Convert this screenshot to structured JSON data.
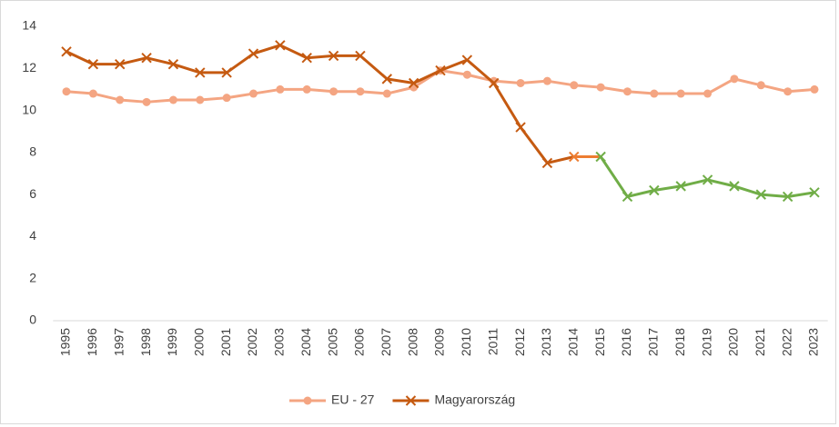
{
  "chart_data": {
    "type": "line",
    "categories": [
      "1995",
      "1996",
      "1997",
      "1998",
      "1999",
      "2000",
      "2001",
      "2002",
      "2003",
      "2004",
      "2005",
      "2006",
      "2007",
      "2008",
      "2009",
      "2010",
      "2011",
      "2012",
      "2013",
      "2014",
      "2015",
      "2016",
      "2017",
      "2018",
      "2019",
      "2020",
      "2021",
      "2022",
      "2023"
    ],
    "series": [
      {
        "name": "EU - 27",
        "color": "#f4a582",
        "marker": "circle",
        "values": [
          10.9,
          10.8,
          10.5,
          10.4,
          10.5,
          10.5,
          10.6,
          10.8,
          11.0,
          11.0,
          10.9,
          10.9,
          10.8,
          11.1,
          11.9,
          11.7,
          11.4,
          11.3,
          11.4,
          11.2,
          11.1,
          10.9,
          10.8,
          10.8,
          10.8,
          11.5,
          11.2,
          10.9,
          11.0
        ]
      },
      {
        "name": "Magyarország",
        "color": "#c55a11",
        "marker": "x",
        "color_changes": [
          {
            "at": "2014",
            "color": "#ed7d31"
          },
          {
            "at": "2015",
            "color": "#70ad47"
          }
        ],
        "values": [
          12.8,
          12.2,
          12.2,
          12.5,
          12.2,
          11.8,
          11.8,
          12.7,
          13.1,
          12.5,
          12.6,
          12.6,
          11.5,
          11.3,
          11.9,
          12.4,
          11.3,
          9.2,
          7.5,
          7.8,
          7.8,
          5.9,
          6.2,
          6.4,
          6.7,
          6.4,
          6.0,
          5.9,
          6.1
        ]
      }
    ],
    "ylim": [
      0,
      14
    ],
    "yticks": [
      0,
      2,
      4,
      6,
      8,
      10,
      12,
      14
    ],
    "grid": false,
    "legend": "bottom"
  }
}
